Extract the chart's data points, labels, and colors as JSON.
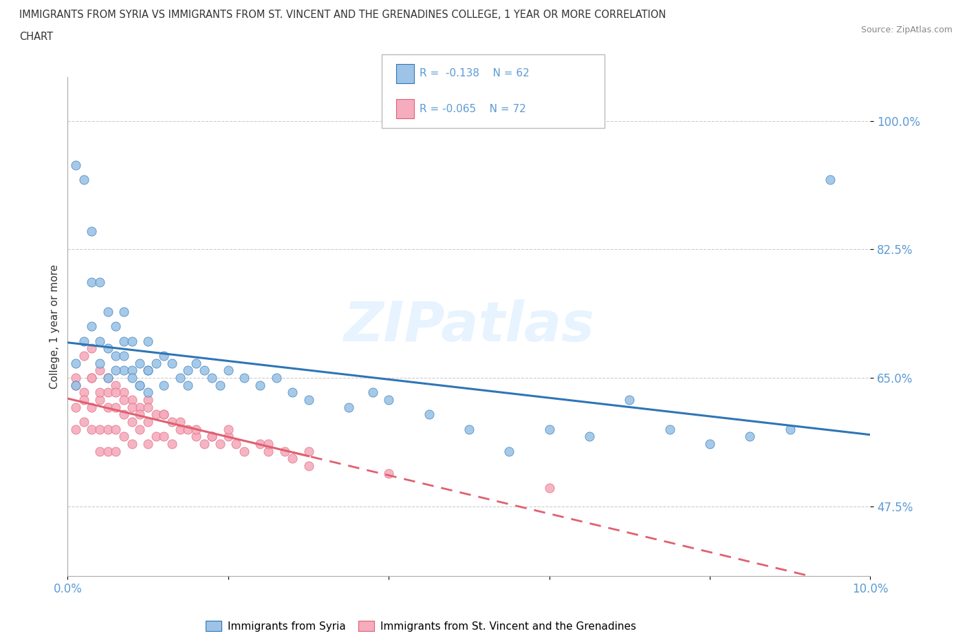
{
  "title_line1": "IMMIGRANTS FROM SYRIA VS IMMIGRANTS FROM ST. VINCENT AND THE GRENADINES COLLEGE, 1 YEAR OR MORE CORRELATION",
  "title_line2": "CHART",
  "source_text": "Source: ZipAtlas.com",
  "ylabel": "College, 1 year or more",
  "xlim": [
    0.0,
    0.1
  ],
  "ylim": [
    0.38,
    1.06
  ],
  "ytick_vals": [
    0.475,
    0.65,
    0.825,
    1.0
  ],
  "ytick_labels": [
    "47.5%",
    "65.0%",
    "82.5%",
    "100.0%"
  ],
  "xtick_vals": [
    0.0,
    0.02,
    0.04,
    0.06,
    0.08,
    0.1
  ],
  "xtick_labels": [
    "0.0%",
    "",
    "",
    "",
    "",
    "10.0%"
  ],
  "color_syria": "#9DC3E6",
  "color_svg": "#F4ACBE",
  "trend_color_syria": "#2E75B6",
  "trend_color_svg": "#E06070",
  "tick_color": "#5B9BD5",
  "watermark": "ZIPatlas",
  "syria_x": [
    0.001,
    0.001,
    0.002,
    0.003,
    0.003,
    0.004,
    0.004,
    0.005,
    0.005,
    0.006,
    0.006,
    0.007,
    0.007,
    0.007,
    0.008,
    0.008,
    0.009,
    0.009,
    0.01,
    0.01,
    0.01,
    0.011,
    0.012,
    0.012,
    0.013,
    0.014,
    0.015,
    0.016,
    0.017,
    0.018,
    0.019,
    0.02,
    0.022,
    0.024,
    0.026,
    0.028,
    0.03,
    0.035,
    0.038,
    0.04,
    0.045,
    0.05,
    0.055,
    0.06,
    0.065,
    0.07,
    0.075,
    0.08,
    0.085,
    0.09,
    0.001,
    0.002,
    0.003,
    0.004,
    0.005,
    0.006,
    0.007,
    0.008,
    0.009,
    0.01,
    0.015,
    0.095
  ],
  "syria_y": [
    0.94,
    0.67,
    0.92,
    0.85,
    0.78,
    0.78,
    0.7,
    0.74,
    0.69,
    0.72,
    0.68,
    0.74,
    0.7,
    0.66,
    0.7,
    0.66,
    0.67,
    0.64,
    0.7,
    0.66,
    0.63,
    0.67,
    0.68,
    0.64,
    0.67,
    0.65,
    0.66,
    0.67,
    0.66,
    0.65,
    0.64,
    0.66,
    0.65,
    0.64,
    0.65,
    0.63,
    0.62,
    0.61,
    0.63,
    0.62,
    0.6,
    0.58,
    0.55,
    0.58,
    0.57,
    0.62,
    0.58,
    0.56,
    0.57,
    0.58,
    0.64,
    0.7,
    0.72,
    0.67,
    0.65,
    0.66,
    0.68,
    0.65,
    0.64,
    0.66,
    0.64,
    0.92
  ],
  "svg_x": [
    0.001,
    0.001,
    0.001,
    0.002,
    0.002,
    0.002,
    0.003,
    0.003,
    0.003,
    0.003,
    0.004,
    0.004,
    0.004,
    0.004,
    0.005,
    0.005,
    0.005,
    0.005,
    0.006,
    0.006,
    0.006,
    0.006,
    0.007,
    0.007,
    0.007,
    0.008,
    0.008,
    0.008,
    0.009,
    0.009,
    0.01,
    0.01,
    0.01,
    0.011,
    0.011,
    0.012,
    0.012,
    0.013,
    0.013,
    0.014,
    0.015,
    0.016,
    0.017,
    0.018,
    0.019,
    0.02,
    0.021,
    0.022,
    0.024,
    0.025,
    0.027,
    0.028,
    0.03,
    0.001,
    0.002,
    0.003,
    0.004,
    0.005,
    0.006,
    0.007,
    0.008,
    0.009,
    0.01,
    0.012,
    0.014,
    0.016,
    0.018,
    0.02,
    0.025,
    0.03,
    0.04,
    0.06
  ],
  "svg_y": [
    0.65,
    0.61,
    0.58,
    0.68,
    0.63,
    0.59,
    0.69,
    0.65,
    0.61,
    0.58,
    0.66,
    0.62,
    0.58,
    0.55,
    0.65,
    0.61,
    0.58,
    0.55,
    0.64,
    0.61,
    0.58,
    0.55,
    0.63,
    0.6,
    0.57,
    0.62,
    0.59,
    0.56,
    0.61,
    0.58,
    0.62,
    0.59,
    0.56,
    0.6,
    0.57,
    0.6,
    0.57,
    0.59,
    0.56,
    0.58,
    0.58,
    0.57,
    0.56,
    0.57,
    0.56,
    0.57,
    0.56,
    0.55,
    0.56,
    0.55,
    0.55,
    0.54,
    0.53,
    0.64,
    0.62,
    0.65,
    0.63,
    0.63,
    0.63,
    0.62,
    0.61,
    0.6,
    0.61,
    0.6,
    0.59,
    0.58,
    0.57,
    0.58,
    0.56,
    0.55,
    0.52,
    0.5
  ]
}
